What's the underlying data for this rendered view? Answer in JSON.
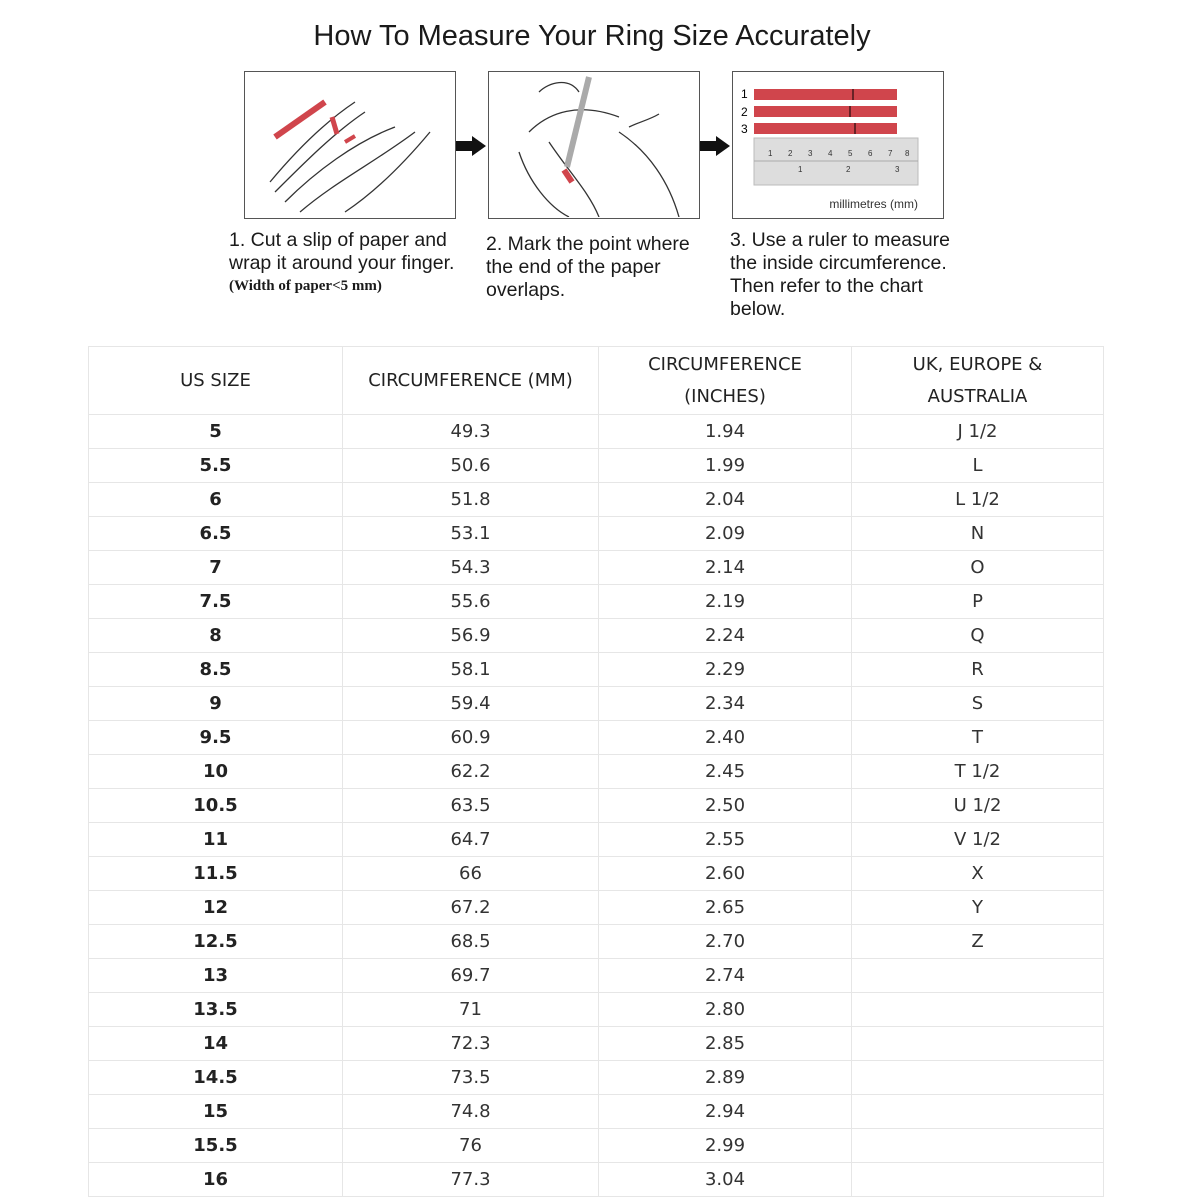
{
  "title": "How To Measure Your Ring Size Accurately",
  "steps": [
    {
      "text": "1. Cut a slip of paper and wrap it around your finger.",
      "note": "(Width of paper<5 mm)",
      "icon": "hand-wrapping-paper-illustration"
    },
    {
      "text": "2. Mark the point where the end of the paper overlaps.",
      "icon": "hand-marking-paper-illustration"
    },
    {
      "text": "3. Use a ruler to measure the inside circumference. Then refer to the chart below.",
      "icon": "ruler-measuring-illustration",
      "strip_labels": [
        "1",
        "2",
        "3"
      ],
      "ruler_label": "millimetres (mm)"
    }
  ],
  "colors": {
    "paper_strip": "#d0454c"
  },
  "table": {
    "headers": [
      "US SIZE",
      "CIRCUMFERENCE (MM)",
      "CIRCUMFERENCE (INCHES)",
      "UK, EUROPE & AUSTRALIA"
    ],
    "rows": [
      [
        "5",
        "49.3",
        "1.94",
        "J 1/2"
      ],
      [
        "5.5",
        "50.6",
        "1.99",
        "L"
      ],
      [
        "6",
        "51.8",
        "2.04",
        "L 1/2"
      ],
      [
        "6.5",
        "53.1",
        "2.09",
        "N"
      ],
      [
        "7",
        "54.3",
        "2.14",
        "O"
      ],
      [
        "7.5",
        "55.6",
        "2.19",
        "P"
      ],
      [
        "8",
        "56.9",
        "2.24",
        "Q"
      ],
      [
        "8.5",
        "58.1",
        "2.29",
        "R"
      ],
      [
        "9",
        "59.4",
        "2.34",
        "S"
      ],
      [
        "9.5",
        "60.9",
        "2.40",
        "T"
      ],
      [
        "10",
        "62.2",
        "2.45",
        "T 1/2"
      ],
      [
        "10.5",
        "63.5",
        "2.50",
        "U 1/2"
      ],
      [
        "11",
        "64.7",
        "2.55",
        "V 1/2"
      ],
      [
        "11.5",
        "66",
        "2.60",
        "X"
      ],
      [
        "12",
        "67.2",
        "2.65",
        "Y"
      ],
      [
        "12.5",
        "68.5",
        "2.70",
        "Z"
      ],
      [
        "13",
        "69.7",
        "2.74",
        ""
      ],
      [
        "13.5",
        "71",
        "2.80",
        ""
      ],
      [
        "14",
        "72.3",
        "2.85",
        ""
      ],
      [
        "14.5",
        "73.5",
        "2.89",
        ""
      ],
      [
        "15",
        "74.8",
        "2.94",
        ""
      ],
      [
        "15.5",
        "76",
        "2.99",
        ""
      ],
      [
        "16",
        "77.3",
        "3.04",
        ""
      ]
    ]
  }
}
